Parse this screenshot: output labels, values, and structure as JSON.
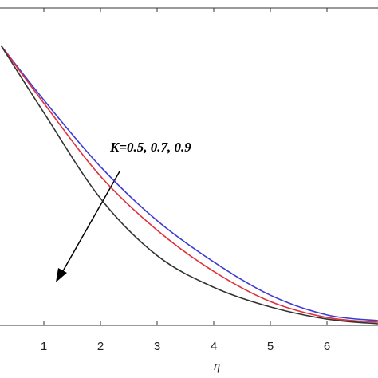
{
  "chart_data": {
    "type": "line",
    "x_label": "η",
    "annotation": "K=0.5, 0.7, 0.9",
    "x": [
      0.25,
      1,
      2,
      3,
      4,
      5,
      6,
      6.9
    ],
    "series": [
      {
        "color": "#3b3bd6",
        "values": [
          0.88,
          0.71,
          0.5,
          0.33,
          0.2,
          0.095,
          0.033,
          0.015
        ]
      },
      {
        "color": "#e0303a",
        "values": [
          0.88,
          0.7,
          0.47,
          0.3,
          0.17,
          0.075,
          0.025,
          0.01
        ]
      },
      {
        "color": "#333333",
        "values": [
          0.88,
          0.67,
          0.4,
          0.22,
          0.12,
          0.058,
          0.02,
          0.005
        ]
      }
    ],
    "xlim": [
      0,
      7
    ],
    "ylim": [
      0,
      1
    ],
    "xticks": [
      1,
      2,
      3,
      4,
      5,
      6
    ]
  }
}
